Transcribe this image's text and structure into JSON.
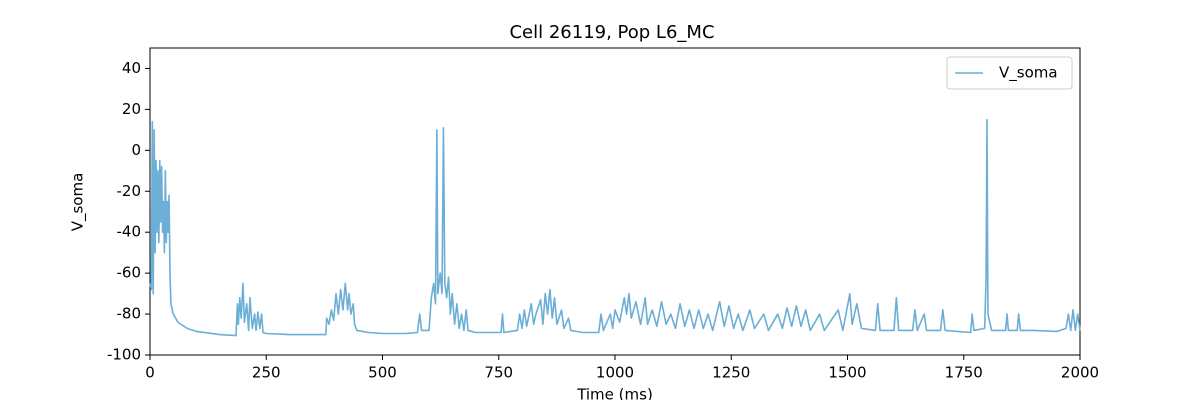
{
  "chart_data": {
    "type": "line",
    "title": "Cell 26119, Pop L6_MC",
    "xlabel": "Time (ms)",
    "ylabel": "V_soma",
    "xlim": [
      0,
      2000
    ],
    "ylim": [
      -100,
      50
    ],
    "xticks": [
      0,
      250,
      500,
      750,
      1000,
      1250,
      1500,
      1750,
      2000
    ],
    "yticks": [
      -100,
      -80,
      -60,
      -40,
      -20,
      0,
      20,
      40
    ],
    "legend": "upper right",
    "grid": false,
    "x": [
      0,
      3,
      5,
      7,
      9,
      11,
      13,
      15,
      17,
      19,
      21,
      23,
      25,
      27,
      29,
      31,
      33,
      35,
      37,
      39,
      41,
      43,
      45,
      50,
      60,
      80,
      100,
      150,
      185,
      188,
      190,
      193,
      196,
      200,
      203,
      208,
      212,
      215,
      220,
      225,
      228,
      232,
      236,
      240,
      243,
      250,
      300,
      350,
      378,
      380,
      385,
      390,
      395,
      400,
      405,
      410,
      415,
      420,
      425,
      428,
      432,
      437,
      440,
      445,
      470,
      500,
      550,
      575,
      580,
      584,
      600,
      605,
      610,
      614,
      617,
      619,
      624,
      628,
      631,
      634,
      638,
      642,
      646,
      650,
      655,
      660,
      665,
      670,
      675,
      680,
      684,
      700,
      755,
      758,
      761,
      790,
      795,
      800,
      805,
      810,
      820,
      825,
      830,
      840,
      845,
      850,
      855,
      860,
      865,
      870,
      875,
      885,
      890,
      900,
      905,
      930,
      965,
      970,
      975,
      990,
      995,
      1000,
      1010,
      1020,
      1025,
      1030,
      1035,
      1045,
      1055,
      1065,
      1070,
      1080,
      1090,
      1100,
      1110,
      1120,
      1130,
      1140,
      1150,
      1160,
      1170,
      1180,
      1190,
      1200,
      1210,
      1225,
      1235,
      1245,
      1255,
      1265,
      1275,
      1290,
      1300,
      1320,
      1330,
      1350,
      1360,
      1370,
      1380,
      1390,
      1400,
      1410,
      1420,
      1440,
      1450,
      1480,
      1490,
      1505,
      1510,
      1520,
      1530,
      1560,
      1565,
      1570,
      1600,
      1605,
      1610,
      1640,
      1645,
      1650,
      1665,
      1670,
      1700,
      1705,
      1710,
      1765,
      1768,
      1772,
      1795,
      1798,
      1800,
      1802,
      1810,
      1840,
      1843,
      1846,
      1865,
      1868,
      1872,
      1900,
      1950,
      1970,
      1975,
      1980,
      1985,
      1990,
      1995,
      2000
    ],
    "series": [
      {
        "name": "V_soma",
        "color": "#6baed6",
        "values": [
          -65,
          -68,
          14,
          -70,
          10,
          -50,
          -5,
          -40,
          -10,
          -45,
          -5,
          -35,
          -8,
          -40,
          -25,
          -50,
          -10,
          -45,
          -25,
          -40,
          -22,
          -60,
          -75,
          -80,
          -84,
          -87,
          -88.5,
          -90,
          -90.5,
          -75,
          -85,
          -72,
          -82,
          -65,
          -84,
          -75,
          -88,
          -72,
          -87,
          -80,
          -88,
          -79,
          -87,
          -80,
          -89,
          -89.5,
          -90,
          -90,
          -90,
          -82,
          -85,
          -78,
          -83,
          -70,
          -80,
          -68,
          -78,
          -65,
          -78,
          -70,
          -80,
          -75,
          -85,
          -88,
          -89,
          -89.5,
          -89.5,
          -89,
          -80,
          -88,
          -88,
          -72,
          -65,
          -75,
          10,
          -70,
          -60,
          -70,
          11,
          -65,
          -72,
          -62,
          -80,
          -70,
          -85,
          -75,
          -87,
          -80,
          -88,
          -78,
          -88,
          -89,
          -89,
          -80,
          -89,
          -88,
          -80,
          -87,
          -78,
          -86,
          -75,
          -85,
          -80,
          -73,
          -85,
          -70,
          -80,
          -68,
          -82,
          -72,
          -85,
          -78,
          -87,
          -82,
          -88,
          -89,
          -89,
          -80,
          -88,
          -80,
          -87,
          -78,
          -84,
          -72,
          -80,
          -70,
          -82,
          -74,
          -85,
          -72,
          -85,
          -78,
          -86,
          -74,
          -85,
          -80,
          -87,
          -75,
          -86,
          -78,
          -87,
          -78,
          -87,
          -80,
          -88,
          -74,
          -86,
          -76,
          -87,
          -80,
          -88,
          -78,
          -87,
          -80,
          -88,
          -80,
          -87,
          -77,
          -86,
          -76,
          -86,
          -78,
          -88,
          -80,
          -88,
          -78,
          -88,
          -70,
          -85,
          -75,
          -87,
          -88,
          -75,
          -88,
          -88,
          -72,
          -88,
          -88,
          -78,
          -88,
          -80,
          -88,
          -88,
          -78,
          -88,
          -89,
          -80,
          -88,
          -87,
          -62,
          15,
          -80,
          -88,
          -88,
          -80,
          -88,
          -88,
          -80,
          -88,
          -88,
          -88.5,
          -87,
          -80,
          -88,
          -78,
          -88,
          -80,
          -88
        ]
      }
    ]
  }
}
